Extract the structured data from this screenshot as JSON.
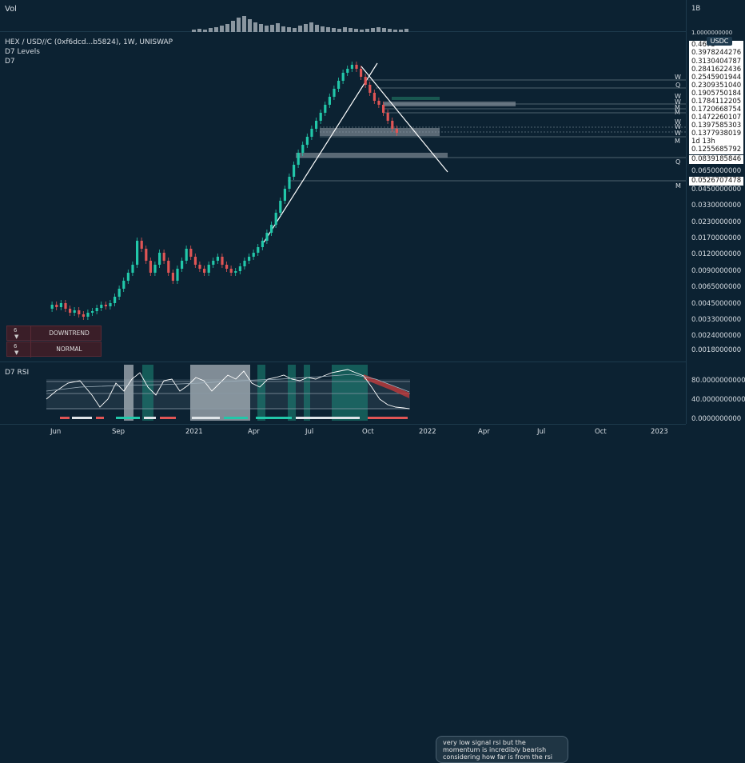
{
  "volume_pane": {
    "title": "Vol",
    "scale_top": "1B",
    "scale_bottom": "1.0000000000"
  },
  "main_pane": {
    "symbol": "HEX / USD//C (0xf6dcd...b5824), 1W, UNISWAP",
    "indicator1": "D7 Levels",
    "indicator2": "D7"
  },
  "price_axis": {
    "currency": "USDC",
    "boxed": [
      "0.4673",
      "0.3978244276",
      "0.3130404787",
      "0.2841622436",
      "0.2545901944",
      "0.2309351040",
      "0.1905750184",
      "0.1784112205",
      "0.1720668754",
      "0.1472260107",
      "0.1397585303",
      "0.1377938019",
      "1d 13h",
      "0.1255685792",
      "0.0839185846",
      "0.0526707478"
    ],
    "plain": [
      "0.0650000000",
      "0.0450000000",
      "0.0330000000",
      "0.0230000000",
      "0.0170000000",
      "0.0120000000",
      "0.0090000000",
      "0.0065000000",
      "0.0045000000",
      "0.0033000000",
      "0.0024000000",
      "0.0018000000"
    ],
    "level_letters": [
      "W",
      "Q",
      "W",
      "W",
      "M",
      "M",
      "W",
      "W",
      "W",
      "M",
      "Q",
      "M"
    ]
  },
  "status_panel": {
    "rows": [
      {
        "num": "6",
        "text": "DOWNTREND"
      },
      {
        "num": "6",
        "text": "NORMAL"
      }
    ]
  },
  "rsi_pane": {
    "title": "D7 RSI",
    "scale": [
      "80.0000000000",
      "40.0000000000",
      "0.0000000000"
    ],
    "note": "very low signal rsi but the momentum is incredibly bearish considering how far is from the rsi"
  },
  "time_axis": [
    "Jun",
    "Sep",
    "2021",
    "Apr",
    "Jul",
    "Oct",
    "2022",
    "Apr",
    "Jul",
    "Oct",
    "2023"
  ],
  "colors": {
    "up": "#22c7a9",
    "down": "#e05555",
    "background": "#0c2232",
    "level": "#8a9aa6"
  }
}
